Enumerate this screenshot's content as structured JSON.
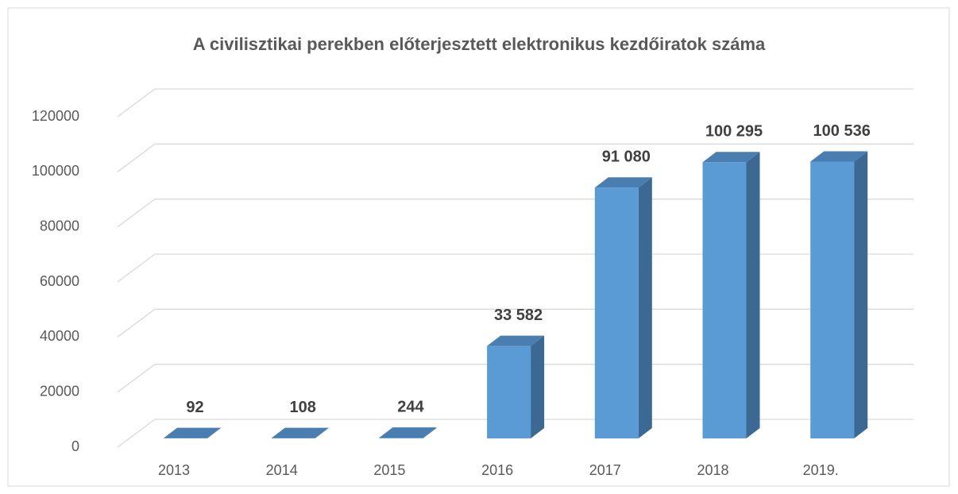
{
  "chart_data": {
    "type": "bar3d",
    "title": "A civilisztikai perekben előterjesztett elektronikus kezdőiratok száma",
    "categories": [
      "2013",
      "2014",
      "2015",
      "2016",
      "2017",
      "2018",
      "2019."
    ],
    "values": [
      92,
      108,
      244,
      33582,
      91080,
      100295,
      100536
    ],
    "value_labels": [
      "92",
      "108",
      "244",
      "33 582",
      "91 080",
      "100 295",
      "100 536"
    ],
    "color": "#5b9bd5",
    "ylim": [
      0,
      120000
    ],
    "yticks": [
      0,
      20000,
      40000,
      60000,
      80000,
      100000,
      120000
    ],
    "grid": true
  }
}
